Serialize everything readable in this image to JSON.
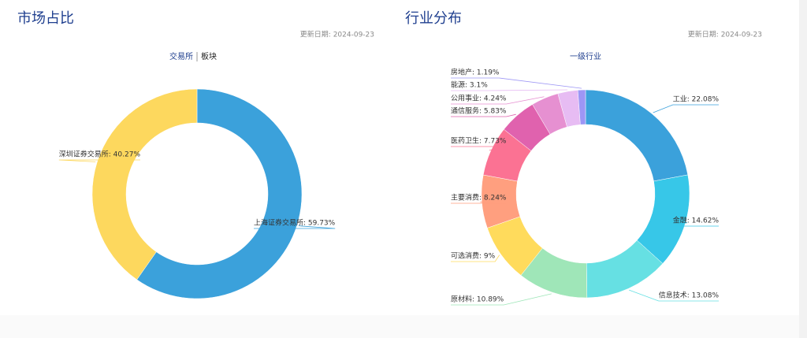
{
  "chart_data": [
    {
      "type": "pie",
      "title": "市场占比",
      "update_date": "更新日期: 2024-09-23",
      "tabs": [
        "交易所",
        "板块"
      ],
      "values": [
        59.73,
        40.27
      ],
      "value_labels": [
        "上海证券交易所: 59.73%",
        "深圳证券交易所: 40.27%"
      ],
      "colors": [
        "#3ba1db",
        "#fdd85e"
      ]
    },
    {
      "type": "pie",
      "title": "行业分布",
      "update_date": "更新日期: 2024-09-23",
      "tabs": [
        "一级行业"
      ],
      "values": [
        22.08,
        14.62,
        13.08,
        10.89,
        9,
        8.24,
        7.73,
        5.83,
        4.24,
        3.1,
        1.19
      ],
      "value_labels": [
        "工业: 22.08%",
        "金融: 14.62%",
        "信息技术: 13.08%",
        "原材料: 10.89%",
        "可选消费: 9%",
        "主要消费: 8.24%",
        "医药卫生: 7.73%",
        "通信服务: 5.83%",
        "公用事业: 4.24%",
        "能源: 3.1%",
        "房地产: 1.19%"
      ],
      "colors": [
        "#3ba1db",
        "#37c7e8",
        "#66e0e3",
        "#9fe6b8",
        "#ffdb5c",
        "#ff9f7f",
        "#fb7293",
        "#e062ae",
        "#e690d1",
        "#e7bcf3",
        "#9d96f5"
      ]
    }
  ]
}
